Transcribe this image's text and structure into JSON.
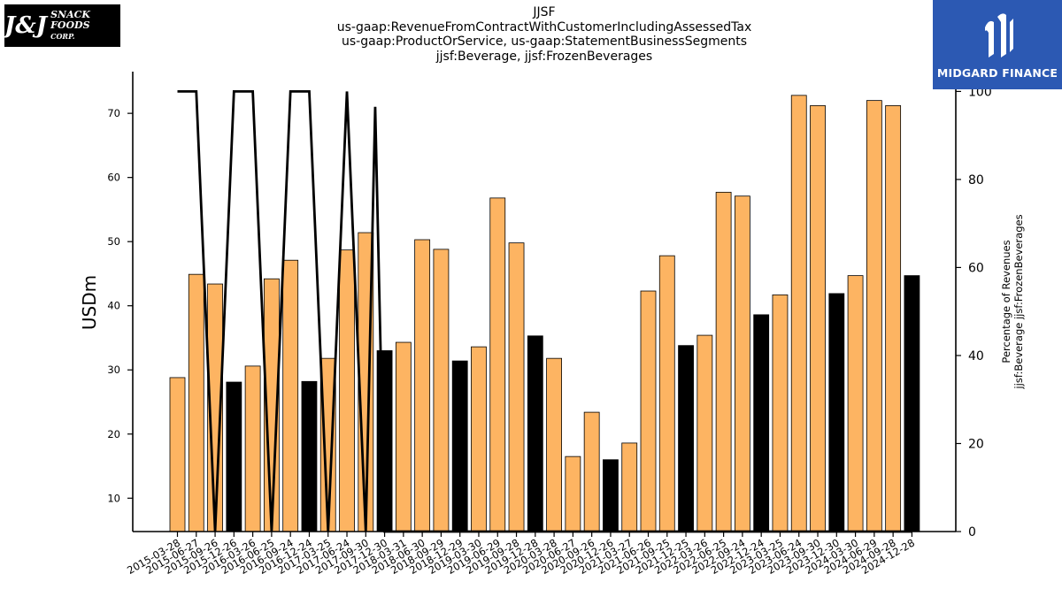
{
  "header": {
    "title_lines": [
      "JJSF",
      "us-gaap:RevenueFromContractWithCustomerIncludingAssessedTax",
      "us-gaap:ProductOrService, us-gaap:StatementBusinessSegments",
      "jjsf:Beverage, jjsf:FrozenBeverages"
    ]
  },
  "logos": {
    "left": {
      "mark": "J&J",
      "text": "SNACK FOODS",
      "sub": "CORP."
    },
    "right": {
      "name": "MIDGARD FINANCE",
      "color": "#2c59b3"
    }
  },
  "chart_data": {
    "type": "bar",
    "ylabel": "USDm",
    "y2label_lines": [
      "Percentage of Revenues",
      "jjsf:Beverage jjsf:FrozenBeverages"
    ],
    "ylim": [
      4.8,
      76.5
    ],
    "y2lim": [
      0,
      104.5
    ],
    "yticks": [
      10,
      20,
      30,
      40,
      50,
      60,
      70
    ],
    "y2ticks": [
      0,
      20,
      40,
      60,
      80,
      100
    ],
    "categories": [
      "2015-03-28",
      "2015-06-27",
      "2015-09-26",
      "2015-12-26",
      "2016-03-26",
      "2016-06-25",
      "2016-09-24",
      "2016-12-24",
      "2017-03-25",
      "2017-06-24",
      "2017-09-30",
      "2017-12-30",
      "2018-03-31",
      "2018-06-30",
      "2018-09-29",
      "2018-12-29",
      "2019-03-30",
      "2019-06-29",
      "2019-09-28",
      "2019-12-28",
      "2020-03-28",
      "2020-06-27",
      "2020-09-26",
      "2020-12-26",
      "2021-03-27",
      "2021-06-26",
      "2021-09-25",
      "2021-12-25",
      "2022-03-26",
      "2022-06-25",
      "2022-09-24",
      "2022-12-24",
      "2023-03-25",
      "2023-06-24",
      "2023-09-30",
      "2023-12-30",
      "2024-03-30",
      "2024-06-29",
      "2024-09-28",
      "2024-12-28"
    ],
    "values": [
      28.8,
      44.9,
      43.4,
      28.1,
      30.6,
      44.2,
      47.1,
      28.2,
      31.8,
      48.7,
      51.4,
      33.0,
      34.3,
      50.3,
      48.8,
      31.4,
      33.6,
      56.8,
      49.8,
      35.3,
      31.8,
      16.5,
      23.4,
      16.0,
      18.6,
      42.3,
      47.8,
      33.8,
      35.4,
      57.7,
      57.1,
      38.6,
      41.7,
      72.8,
      71.2,
      41.9,
      44.7,
      72.0,
      71.2,
      44.7
    ],
    "fill_colors": [
      "orange",
      "orange",
      "orange",
      "black",
      "orange",
      "orange",
      "orange",
      "black",
      "orange",
      "orange",
      "orange",
      "black",
      "orange",
      "orange",
      "orange",
      "black",
      "orange",
      "orange",
      "orange",
      "black",
      "orange",
      "orange",
      "orange",
      "black",
      "orange",
      "orange",
      "orange",
      "black",
      "orange",
      "orange",
      "orange",
      "black",
      "orange",
      "orange",
      "orange",
      "black",
      "orange",
      "orange",
      "orange",
      "black"
    ],
    "line_pct": [
      100,
      100,
      0,
      100,
      100,
      0,
      100,
      100,
      0,
      100,
      0,
      0,
      0,
      0,
      0,
      0,
      0,
      0,
      0,
      0,
      0,
      0,
      0,
      0,
      0,
      0,
      0,
      0,
      0,
      0,
      0,
      0,
      0,
      0,
      0,
      0,
      0,
      0,
      0,
      0
    ],
    "line_spike": {
      "index": 10.5,
      "value": 96.5
    },
    "colors": {
      "orange": "#fdb462",
      "black": "#000000",
      "line": "#000000"
    }
  }
}
